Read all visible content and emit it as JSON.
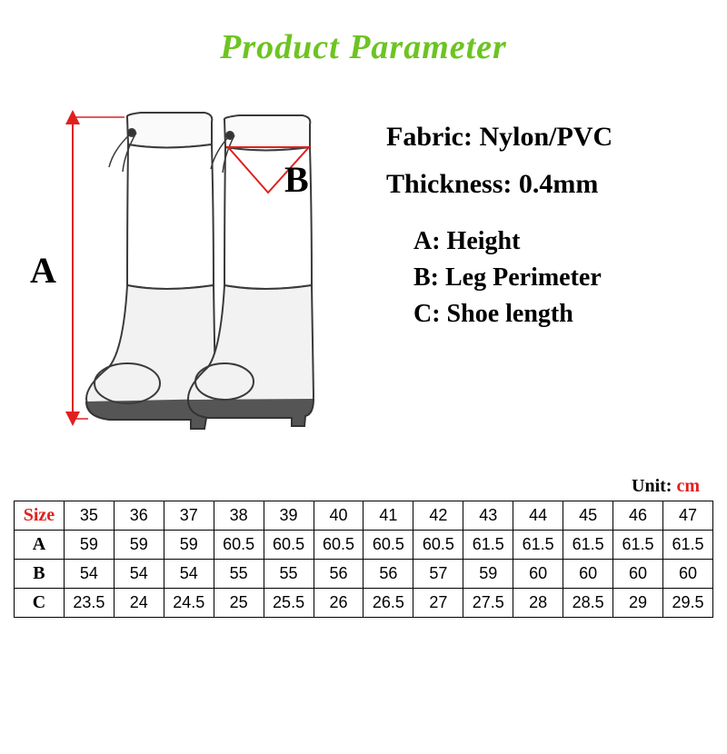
{
  "title": {
    "text": "Product Parameter",
    "color": "#6cc421"
  },
  "specs": {
    "fabric_label": "Fabric:",
    "fabric_value": "Nylon/PVC",
    "thickness_label": "Thickness:",
    "thickness_value": "0.4mm"
  },
  "legend": {
    "a": "A: Height",
    "b": "B: Leg Perimeter",
    "c": "C: Shoe length"
  },
  "diagram": {
    "label_a": "A",
    "label_b": "B",
    "stroke_color": "#3a3a3a",
    "arrow_color": "#e02020",
    "fill_color": "#efefef"
  },
  "unit": {
    "label": "Unit:",
    "value": "cm",
    "value_color": "#e02020"
  },
  "table": {
    "type": "table",
    "row_headers": [
      "Size",
      "A",
      "B",
      "C"
    ],
    "header_color": "#e02020",
    "columns": [
      "35",
      "36",
      "37",
      "38",
      "39",
      "40",
      "41",
      "42",
      "43",
      "44",
      "45",
      "46",
      "47"
    ],
    "rows": [
      [
        "59",
        "59",
        "59",
        "60.5",
        "60.5",
        "60.5",
        "60.5",
        "60.5",
        "61.5",
        "61.5",
        "61.5",
        "61.5",
        "61.5"
      ],
      [
        "54",
        "54",
        "54",
        "55",
        "55",
        "56",
        "56",
        "57",
        "59",
        "60",
        "60",
        "60",
        "60"
      ],
      [
        "23.5",
        "24",
        "24.5",
        "25",
        "25.5",
        "26",
        "26.5",
        "27",
        "27.5",
        "28",
        "28.5",
        "29",
        "29.5"
      ]
    ],
    "border_color": "#000000",
    "cell_fontsize": 18
  }
}
